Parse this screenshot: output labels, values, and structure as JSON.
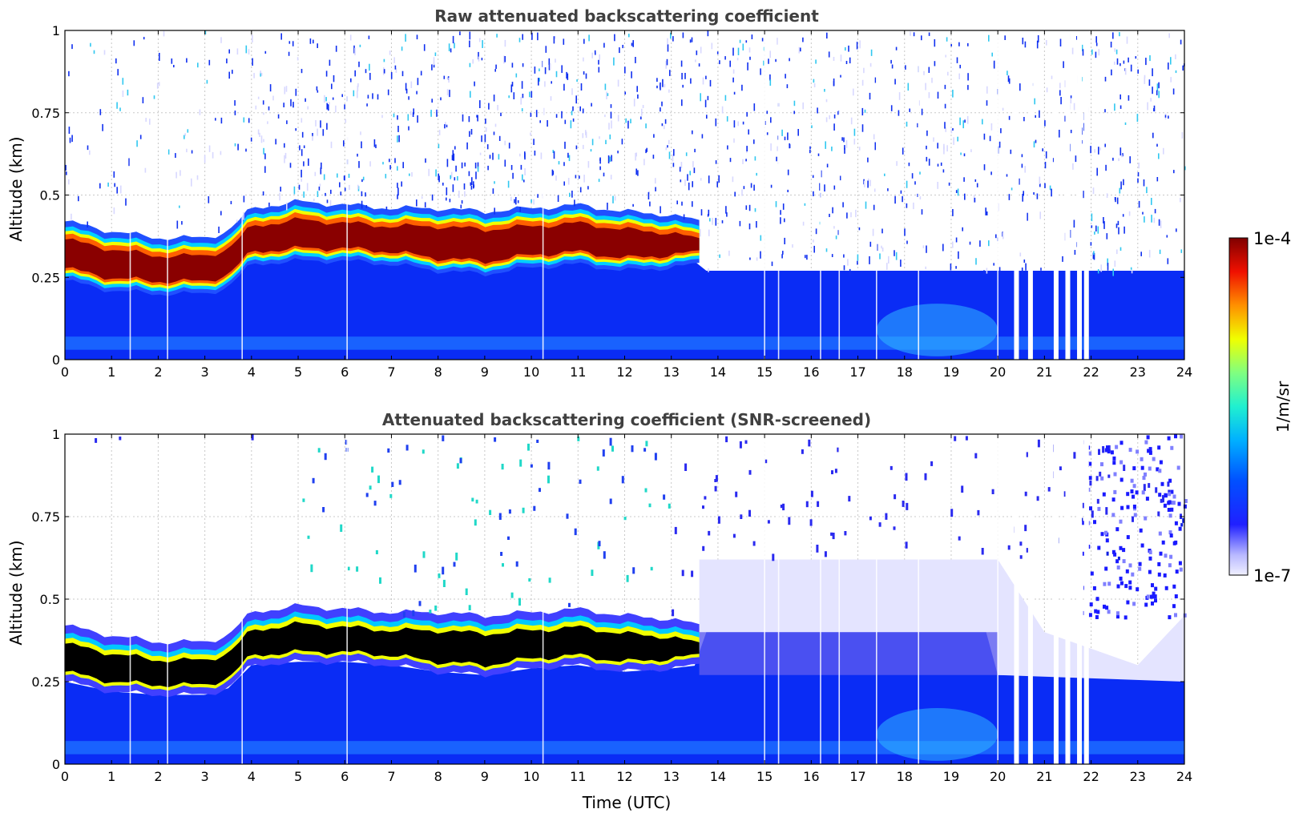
{
  "chart_data": [
    {
      "type": "heatmap",
      "title": "Raw attenuated backscattering coefficient",
      "xlabel": "",
      "ylabel": "Altitude (km)",
      "xlim": [
        0,
        24
      ],
      "ylim": [
        0,
        1
      ],
      "x_ticks": [
        "0",
        "1",
        "2",
        "3",
        "4",
        "5",
        "6",
        "7",
        "8",
        "9",
        "10",
        "11",
        "12",
        "13",
        "14",
        "15",
        "16",
        "17",
        "18",
        "19",
        "20",
        "21",
        "22",
        "23",
        "24"
      ],
      "y_ticks": [
        "0",
        "0.25",
        "0.5",
        "0.75",
        "1"
      ],
      "y_tick_values": [
        0,
        0.25,
        0.5,
        0.75,
        1
      ],
      "grid": true,
      "colormap": "jet",
      "layer": {
        "time_utc": [
          0,
          1,
          2,
          3,
          3.5,
          4,
          5,
          6,
          7,
          8,
          9,
          10,
          11,
          12,
          13,
          13.6
        ],
        "top_km": [
          0.4,
          0.37,
          0.35,
          0.35,
          0.37,
          0.44,
          0.46,
          0.45,
          0.44,
          0.44,
          0.43,
          0.44,
          0.45,
          0.43,
          0.42,
          0.4
        ],
        "bottom_km": [
          0.25,
          0.22,
          0.21,
          0.21,
          0.23,
          0.3,
          0.31,
          0.31,
          0.3,
          0.28,
          0.27,
          0.29,
          0.3,
          0.28,
          0.29,
          0.3
        ]
      },
      "data_gaps_utc": [
        20.4,
        20.7,
        21.25,
        21.5,
        21.75,
        21.9
      ]
    },
    {
      "type": "heatmap",
      "title": "Attenuated backscattering coefficient (SNR-screened)",
      "xlabel": "Time (UTC)",
      "ylabel": "Altitude (km)",
      "xlim": [
        0,
        24
      ],
      "ylim": [
        0,
        1
      ],
      "x_ticks": [
        "0",
        "1",
        "2",
        "3",
        "4",
        "5",
        "6",
        "7",
        "8",
        "9",
        "10",
        "11",
        "12",
        "13",
        "14",
        "15",
        "16",
        "17",
        "18",
        "19",
        "20",
        "21",
        "22",
        "23",
        "24"
      ],
      "y_ticks": [
        "0",
        "0.25",
        "0.5",
        "0.75",
        "1"
      ],
      "y_tick_values": [
        0,
        0.25,
        0.5,
        0.75,
        1
      ],
      "grid": true,
      "colormap": "jet",
      "saturated_color": "#000000",
      "layer": {
        "time_utc": [
          0,
          1,
          2,
          3,
          3.5,
          4,
          5,
          6,
          7,
          8,
          9,
          10,
          11,
          12,
          13,
          13.6
        ],
        "top_km": [
          0.4,
          0.37,
          0.35,
          0.35,
          0.37,
          0.44,
          0.46,
          0.45,
          0.44,
          0.44,
          0.43,
          0.44,
          0.45,
          0.43,
          0.42,
          0.4
        ],
        "bottom_km": [
          0.25,
          0.22,
          0.21,
          0.21,
          0.23,
          0.3,
          0.31,
          0.31,
          0.3,
          0.28,
          0.27,
          0.29,
          0.3,
          0.28,
          0.29,
          0.3
        ]
      },
      "data_gaps_utc": [
        20.4,
        20.7,
        21.25,
        21.5,
        21.75,
        21.9
      ]
    }
  ],
  "colorbar": {
    "label": "1/m/sr",
    "max_label": "1e-4",
    "min_label": "1e-7",
    "scale": "log",
    "range": [
      1e-07,
      0.0001
    ]
  }
}
